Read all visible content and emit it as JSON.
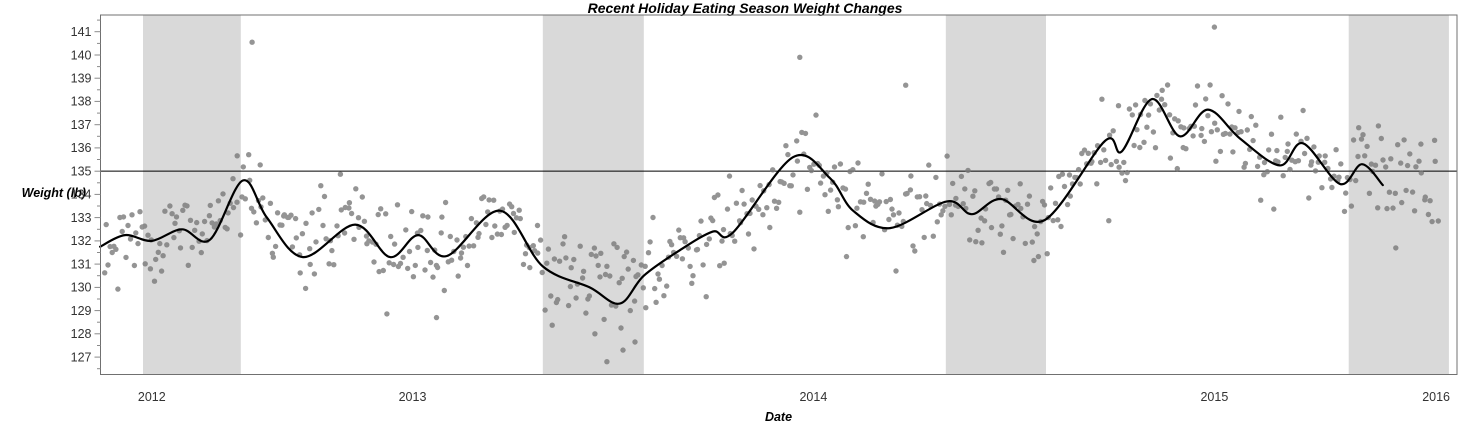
{
  "chart_data": {
    "type": "scatter",
    "title": "Recent Holiday Eating Season Weight Changes",
    "xlabel": "Date",
    "ylabel": "Weight (lb)",
    "grid": false,
    "legend": "none",
    "x_range": [
      2012.722,
      2016.105
    ],
    "y_range": [
      126.25,
      141.72
    ],
    "y_ticks": {
      "major": [
        127,
        128,
        129,
        130,
        131,
        132,
        133,
        134,
        135,
        136,
        137,
        138,
        139,
        140,
        141
      ],
      "minor_step": 0.5
    },
    "x_tick_labels": [
      {
        "label": "2012",
        "t": 2012.85
      },
      {
        "label": "2013",
        "t": 2013.5
      },
      {
        "label": "2014",
        "t": 2014.5
      },
      {
        "label": "2015",
        "t": 2015.5
      },
      {
        "label": "2016",
        "t": 2016.053
      }
    ],
    "reference_line": {
      "value": 135,
      "color": "#000000"
    },
    "holiday_bands": {
      "color": "#d9d9d9",
      "intervals": [
        [
          2012.828,
          2013.072
        ],
        [
          2013.825,
          2014.077
        ],
        [
          2014.83,
          2015.08
        ],
        [
          2015.835,
          2016.085
        ]
      ]
    },
    "trend_line": {
      "color": "#000000",
      "width": 2.2,
      "points": [
        [
          2012.721,
          131.75
        ],
        [
          2012.783,
          132.25
        ],
        [
          2012.85,
          132.0
        ],
        [
          2012.925,
          132.5
        ],
        [
          2012.995,
          132.05
        ],
        [
          2013.077,
          134.6
        ],
        [
          2013.137,
          133.0
        ],
        [
          2013.227,
          131.3
        ],
        [
          2013.357,
          132.7
        ],
        [
          2013.444,
          131.3
        ],
        [
          2013.514,
          132.25
        ],
        [
          2013.586,
          131.35
        ],
        [
          2013.718,
          133.3
        ],
        [
          2013.825,
          130.9
        ],
        [
          2013.942,
          130.0
        ],
        [
          2014.017,
          129.3
        ],
        [
          2014.077,
          130.5
        ],
        [
          2014.167,
          131.6
        ],
        [
          2014.249,
          132.4
        ],
        [
          2014.299,
          132.35
        ],
        [
          2014.449,
          135.6
        ],
        [
          2014.541,
          134.7
        ],
        [
          2014.599,
          133.3
        ],
        [
          2014.691,
          132.55
        ],
        [
          2014.833,
          133.7
        ],
        [
          2014.895,
          133.15
        ],
        [
          2014.968,
          133.8
        ],
        [
          2015.077,
          132.9
        ],
        [
          2015.227,
          136.3
        ],
        [
          2015.269,
          135.85
        ],
        [
          2015.344,
          138.1
        ],
        [
          2015.414,
          136.5
        ],
        [
          2015.484,
          137.65
        ],
        [
          2015.564,
          136.4
        ],
        [
          2015.663,
          135.25
        ],
        [
          2015.721,
          136.2
        ],
        [
          2015.813,
          134.45
        ],
        [
          2015.868,
          135.3
        ],
        [
          2015.92,
          134.4
        ]
      ]
    },
    "scatter": {
      "color": "#7a7a7a",
      "opacity": 0.8,
      "radius": 2.7,
      "n": 680,
      "noise_sd": 0.95,
      "seed": 20151225,
      "t_start": 2012.73,
      "t_end": 2016.06,
      "outliers": [
        [
          2013.1,
          140.55
        ],
        [
          2014.466,
          139.9
        ],
        [
          2014.73,
          138.7
        ],
        [
          2015.5,
          141.2
        ],
        [
          2013.985,
          126.8
        ],
        [
          2014.025,
          127.3
        ],
        [
          2014.055,
          127.65
        ],
        [
          2013.955,
          128.0
        ],
        [
          2013.56,
          128.7
        ]
      ]
    },
    "colors": {
      "frame": "#707070",
      "tick": "#8a8a8a",
      "tick_label": "#333333",
      "band": "#d9d9d9"
    }
  }
}
